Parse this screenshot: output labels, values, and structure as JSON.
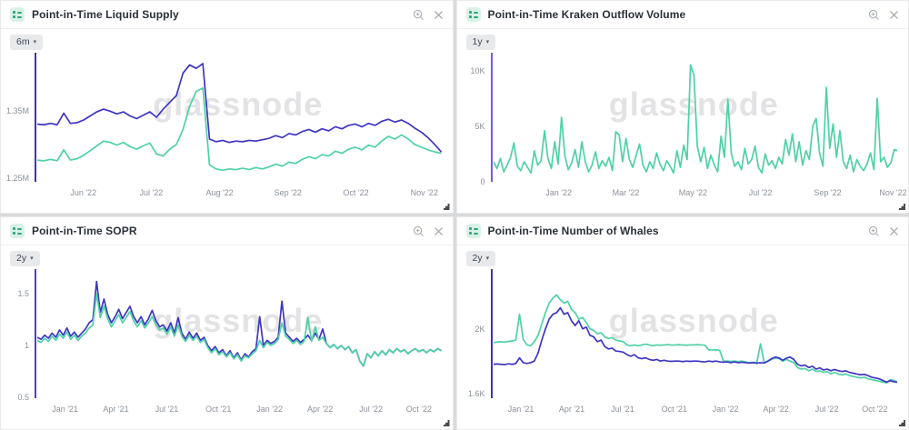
{
  "watermark": "glassnode",
  "colors": {
    "series_green": "#4fd1a6",
    "series_blue": "#3e35c4",
    "watermark_gray": "#e3e3e5",
    "icon_gray": "#a9aeb6"
  },
  "panels": [
    {
      "title": "Point-in-Time Liquid Supply",
      "range_label": "6m",
      "header_icons": [
        "metric-icon",
        "zoom-in-icon",
        "close-icon"
      ],
      "chart_data": {
        "type": "line",
        "axis_color": "#3c35b2",
        "ylim": [
          1.245,
          1.435
        ],
        "y_ticks": [
          {
            "label": "1.35M",
            "value": 1.35
          },
          {
            "label": "1.25M",
            "value": 1.25
          }
        ],
        "x_ticks": [
          {
            "label": "Jun '22",
            "pos": 0.12
          },
          {
            "label": "Jul '22",
            "pos": 0.287
          },
          {
            "label": "Aug '22",
            "pos": 0.455
          },
          {
            "label": "Sep '22",
            "pos": 0.623
          },
          {
            "label": "Oct '22",
            "pos": 0.79
          },
          {
            "label": "Nov '22",
            "pos": 0.958
          }
        ],
        "series": [
          {
            "name": "green",
            "color": "#4fd1a6",
            "values": [
              1.277,
              1.276,
              1.278,
              1.276,
              1.292,
              1.277,
              1.279,
              1.284,
              1.291,
              1.298,
              1.305,
              1.303,
              1.299,
              1.303,
              1.297,
              1.293,
              1.298,
              1.302,
              1.286,
              1.283,
              1.293,
              1.3,
              1.322,
              1.356,
              1.378,
              1.383,
              1.27,
              1.264,
              1.262,
              1.264,
              1.263,
              1.265,
              1.263,
              1.266,
              1.264,
              1.267,
              1.271,
              1.268,
              1.274,
              1.272,
              1.278,
              1.282,
              1.279,
              1.285,
              1.283,
              1.29,
              1.287,
              1.293,
              1.296,
              1.292,
              1.299,
              1.296,
              1.305,
              1.312,
              1.308,
              1.314,
              1.308,
              1.3,
              1.296,
              1.292,
              1.289,
              1.287
            ]
          },
          {
            "name": "blue",
            "color": "#3e35c4",
            "values": [
              1.33,
              1.329,
              1.331,
              1.329,
              1.346,
              1.331,
              1.332,
              1.336,
              1.342,
              1.348,
              1.352,
              1.349,
              1.345,
              1.348,
              1.342,
              1.338,
              1.343,
              1.348,
              1.34,
              1.352,
              1.362,
              1.372,
              1.405,
              1.417,
              1.412,
              1.419,
              1.308,
              1.304,
              1.306,
              1.303,
              1.305,
              1.304,
              1.306,
              1.305,
              1.307,
              1.309,
              1.313,
              1.31,
              1.316,
              1.314,
              1.319,
              1.322,
              1.318,
              1.323,
              1.32,
              1.326,
              1.323,
              1.328,
              1.33,
              1.326,
              1.331,
              1.328,
              1.334,
              1.337,
              1.333,
              1.336,
              1.331,
              1.324,
              1.318,
              1.31,
              1.3,
              1.289
            ]
          }
        ]
      }
    },
    {
      "title": "Point-in-Time Kraken Outflow Volume",
      "range_label": "1y",
      "header_icons": [
        "metric-icon",
        "zoom-in-icon",
        "close-icon"
      ],
      "chart_data": {
        "type": "line",
        "axis_color": "#6e5ce8",
        "ylim": [
          0,
          11.6
        ],
        "y_ticks": [
          {
            "label": "10K",
            "value": 10
          },
          {
            "label": "5K",
            "value": 5
          },
          {
            "label": "0",
            "value": 0
          }
        ],
        "x_ticks": [
          {
            "label": "Jan '22",
            "pos": 0.168
          },
          {
            "label": "Mar '22",
            "pos": 0.333
          },
          {
            "label": "May '22",
            "pos": 0.498
          },
          {
            "label": "Jul '22",
            "pos": 0.664
          },
          {
            "label": "Sep '22",
            "pos": 0.829
          },
          {
            "label": "Nov '22",
            "pos": 0.99
          }
        ],
        "series": [
          {
            "name": "green",
            "color": "#4fd1a6",
            "values": [
              1.8,
              1.2,
              2.1,
              0.9,
              1.5,
              2.2,
              3.5,
              1.4,
              1.0,
              1.8,
              1.3,
              0.8,
              2.8,
              1.5,
              1.9,
              4.6,
              2.1,
              1.2,
              3.6,
              1.6,
              5.8,
              2.3,
              1.1,
              1.7,
              2.9,
              1.3,
              3.6,
              1.8,
              0.9,
              1.5,
              2.7,
              1.2,
              1.9,
              1.4,
              2.2,
              1.0,
              4.5,
              4.2,
              1.8,
              3.9,
              2.0,
              1.3,
              2.4,
              3.4,
              1.5,
              0.9,
              1.8,
              1.2,
              2.6,
              1.6,
              1.0,
              1.9,
              1.4,
              0.8,
              2.8,
              1.3,
              3.3,
              2.0,
              10.5,
              9.6,
              3.2,
              1.8,
              3.1,
              1.2,
              2.4,
              1.5,
              0.9,
              4.1,
              2.2,
              7.4,
              2.6,
              1.4,
              1.8,
              1.1,
              3.0,
              1.6,
              2.0,
              3.2,
              1.3,
              0.8,
              2.5,
              1.5,
              1.9,
              1.2,
              2.2,
              1.6,
              3.8,
              2.4,
              4.3,
              1.8,
              3.6,
              1.5,
              2.8,
              2.0,
              5.0,
              5.7,
              2.6,
              1.4,
              8.5,
              3.0,
              5.2,
              2.2,
              4.6,
              1.8,
              1.2,
              2.4,
              0.9,
              2.0,
              1.4,
              1.0,
              1.6,
              2.6,
              1.1,
              7.5,
              1.8,
              2.2,
              1.3,
              1.7,
              2.9,
              2.8
            ]
          }
        ]
      }
    },
    {
      "title": "Point-in-Time SOPR",
      "range_label": "2y",
      "header_icons": [
        "metric-icon",
        "zoom-in-icon",
        "close-icon"
      ],
      "chart_data": {
        "type": "line",
        "axis_color": "#4a41cf",
        "ylim": [
          0.49,
          1.74
        ],
        "y_ticks": [
          {
            "label": "1.5",
            "value": 1.5
          },
          {
            "label": "1",
            "value": 1
          },
          {
            "label": "0.5",
            "value": 0.5
          }
        ],
        "x_ticks": [
          {
            "label": "Jan '21",
            "pos": 0.075
          },
          {
            "label": "Apr '21",
            "pos": 0.2
          },
          {
            "label": "Jul '21",
            "pos": 0.325
          },
          {
            "label": "Oct '21",
            "pos": 0.452
          },
          {
            "label": "Jan '22",
            "pos": 0.578
          },
          {
            "label": "Apr '22",
            "pos": 0.702
          },
          {
            "label": "Jul '22",
            "pos": 0.827
          },
          {
            "label": "Oct '22",
            "pos": 0.945
          }
        ],
        "series": [
          {
            "name": "blue",
            "color": "#3e35c4",
            "values": [
              1.08,
              1.06,
              1.1,
              1.07,
              1.12,
              1.08,
              1.15,
              1.1,
              1.17,
              1.09,
              1.13,
              1.08,
              1.12,
              1.16,
              1.22,
              1.25,
              1.62,
              1.32,
              1.45,
              1.3,
              1.22,
              1.28,
              1.35,
              1.26,
              1.32,
              1.38,
              1.28,
              1.22,
              1.28,
              1.2,
              1.26,
              1.34,
              1.24,
              1.18,
              1.2,
              1.14,
              1.22,
              1.12,
              1.27,
              1.12,
              1.06,
              1.13,
              1.07,
              1.12,
              1.05,
              1.08,
              1.0,
              0.95,
              0.99,
              0.93,
              0.96,
              0.9,
              0.95,
              0.88,
              0.93,
              0.86,
              0.92,
              0.89,
              0.94,
              0.97,
              1.28,
              1.0,
              1.05,
              1.02,
              1.04,
              1.08,
              1.43,
              1.12,
              1.08,
              1.04,
              1.07,
              1.03,
              1.06,
              1.1,
              1.05,
              1.12,
              1.06,
              1.16,
              1.02,
              0.98,
              1.01,
              0.97,
              1.0,
              0.96,
              0.99,
              0.93,
              0.96,
              0.85,
              0.8,
              0.92,
              0.88,
              0.94,
              0.9,
              0.95,
              0.91,
              0.96,
              0.93,
              0.97,
              0.94,
              0.96,
              0.92,
              0.95,
              0.97,
              0.94,
              0.96,
              0.93,
              0.96,
              0.94,
              0.97,
              0.95
            ]
          },
          {
            "name": "green",
            "color": "#4fd1a6",
            "values": [
              1.05,
              1.03,
              1.07,
              1.04,
              1.09,
              1.05,
              1.11,
              1.07,
              1.13,
              1.06,
              1.1,
              1.05,
              1.09,
              1.12,
              1.17,
              1.2,
              1.5,
              1.27,
              1.38,
              1.26,
              1.18,
              1.24,
              1.3,
              1.22,
              1.27,
              1.33,
              1.24,
              1.18,
              1.24,
              1.17,
              1.22,
              1.28,
              1.2,
              1.15,
              1.17,
              1.11,
              1.18,
              1.09,
              1.2,
              1.09,
              1.04,
              1.1,
              1.05,
              1.09,
              1.03,
              1.06,
              0.98,
              0.93,
              0.97,
              0.91,
              0.94,
              0.89,
              0.93,
              0.87,
              0.91,
              0.85,
              0.9,
              0.88,
              0.92,
              0.95,
              1.05,
              0.98,
              1.03,
              1.0,
              1.02,
              1.06,
              1.22,
              1.09,
              1.06,
              1.02,
              1.05,
              1.01,
              1.04,
              1.27,
              1.04,
              1.18,
              1.05,
              1.08,
              1.02,
              0.98,
              1.01,
              0.97,
              1.0,
              0.96,
              0.99,
              0.93,
              0.96,
              0.85,
              0.8,
              0.92,
              0.88,
              0.94,
              0.9,
              0.95,
              0.91,
              0.96,
              0.93,
              0.97,
              0.94,
              0.96,
              0.92,
              0.95,
              0.97,
              0.94,
              0.96,
              0.93,
              0.96,
              0.94,
              0.97,
              0.95
            ]
          }
        ]
      }
    },
    {
      "title": "Point-in-Time Number of Whales",
      "range_label": "2y",
      "header_icons": [
        "metric-icon",
        "zoom-in-icon",
        "close-icon"
      ],
      "chart_data": {
        "type": "line",
        "axis_color": "#3c35b2",
        "ylim": [
          1.57,
          2.37
        ],
        "y_ticks": [
          {
            "label": "2K",
            "value": 2
          },
          {
            "label": "1.6K",
            "value": 1.6
          }
        ],
        "x_ticks": [
          {
            "label": "Jan '21",
            "pos": 0.075
          },
          {
            "label": "Apr '21",
            "pos": 0.2
          },
          {
            "label": "Jul '21",
            "pos": 0.325
          },
          {
            "label": "Oct '21",
            "pos": 0.452
          },
          {
            "label": "Jan '22",
            "pos": 0.578
          },
          {
            "label": "Apr '22",
            "pos": 0.702
          },
          {
            "label": "Jul '22",
            "pos": 0.827
          },
          {
            "label": "Oct '22",
            "pos": 0.945
          }
        ],
        "series": [
          {
            "name": "green",
            "color": "#4fd1a6",
            "values": [
              1.915,
              1.918,
              1.92,
              1.917,
              1.922,
              1.925,
              1.93,
              2.09,
              1.935,
              1.9,
              1.895,
              1.92,
              1.96,
              2.03,
              2.1,
              2.16,
              2.19,
              2.21,
              2.18,
              2.16,
              2.17,
              2.12,
              2.1,
              2.06,
              2.07,
              2.04,
              2.0,
              1.99,
              1.97,
              1.975,
              1.95,
              1.94,
              1.945,
              1.93,
              1.925,
              1.92,
              1.9,
              1.895,
              1.9,
              1.895,
              1.9,
              1.905,
              1.9,
              1.895,
              1.9,
              1.898,
              1.9,
              1.902,
              1.899,
              1.9,
              1.902,
              1.9,
              1.898,
              1.9,
              1.9,
              1.902,
              1.9,
              1.898,
              1.87,
              1.868,
              1.87,
              1.866,
              1.8,
              1.8,
              1.798,
              1.8,
              1.797,
              1.8,
              1.795,
              1.79,
              1.793,
              1.79,
              1.907,
              1.79,
              1.8,
              1.81,
              1.82,
              1.815,
              1.8,
              1.81,
              1.8,
              1.79,
              1.76,
              1.75,
              1.755,
              1.74,
              1.75,
              1.735,
              1.74,
              1.73,
              1.735,
              1.72,
              1.73,
              1.72,
              1.715,
              1.72,
              1.71,
              1.705,
              1.7,
              1.695,
              1.7,
              1.69,
              1.685,
              1.68,
              1.675,
              1.67,
              1.665,
              1.685,
              1.68,
              1.672
            ]
          },
          {
            "name": "blue",
            "color": "#3e35c4",
            "values": [
              1.78,
              1.782,
              1.78,
              1.778,
              1.783,
              1.78,
              1.785,
              1.82,
              1.79,
              1.785,
              1.79,
              1.8,
              1.85,
              1.93,
              2.0,
              2.06,
              2.09,
              2.1,
              2.13,
              2.09,
              2.1,
              2.05,
              2.02,
              2.05,
              2.0,
              2.01,
              1.96,
              1.95,
              1.92,
              1.93,
              1.89,
              1.875,
              1.88,
              1.862,
              1.86,
              1.855,
              1.84,
              1.83,
              1.84,
              1.82,
              1.815,
              1.82,
              1.81,
              1.805,
              1.81,
              1.8,
              1.805,
              1.8,
              1.798,
              1.8,
              1.8,
              1.797,
              1.8,
              1.798,
              1.8,
              1.8,
              1.797,
              1.795,
              1.8,
              1.797,
              1.8,
              1.795,
              1.793,
              1.795,
              1.79,
              1.795,
              1.79,
              1.793,
              1.79,
              1.788,
              1.79,
              1.787,
              1.79,
              1.788,
              1.8,
              1.815,
              1.825,
              1.82,
              1.805,
              1.818,
              1.825,
              1.81,
              1.78,
              1.77,
              1.775,
              1.76,
              1.768,
              1.75,
              1.758,
              1.745,
              1.75,
              1.74,
              1.748,
              1.74,
              1.735,
              1.74,
              1.73,
              1.725,
              1.72,
              1.715,
              1.718,
              1.71,
              1.7,
              1.695,
              1.69,
              1.68,
              1.67,
              1.678,
              1.672,
              1.668
            ]
          }
        ]
      }
    }
  ]
}
